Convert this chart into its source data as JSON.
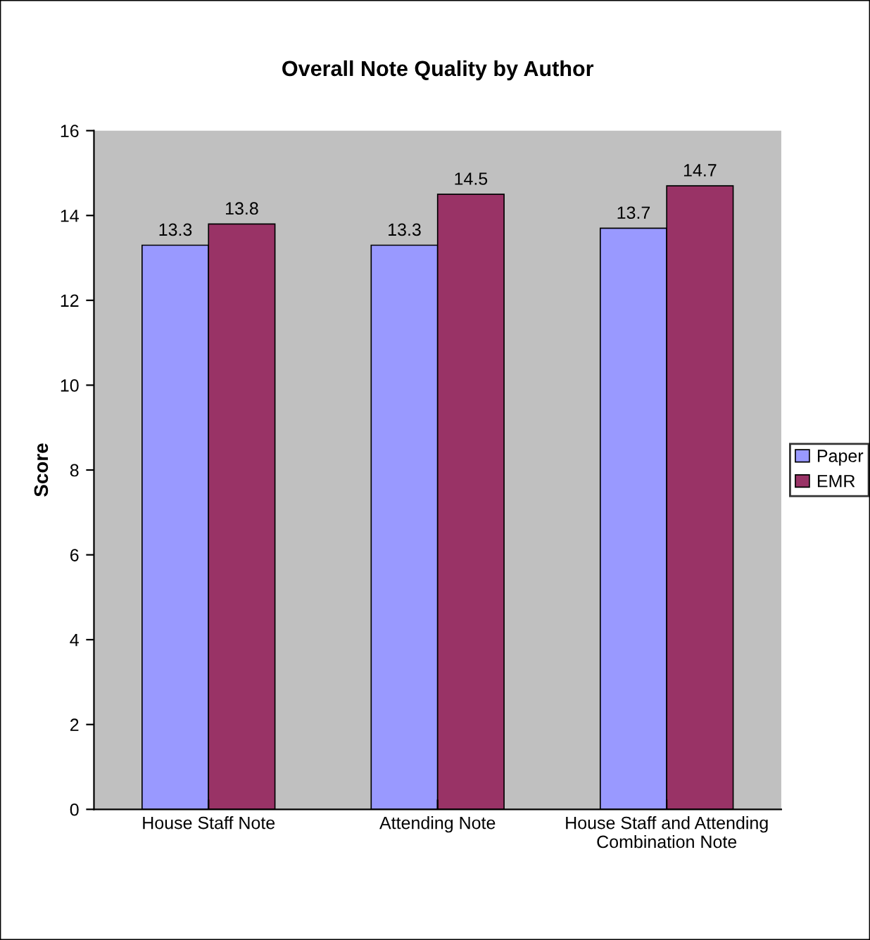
{
  "chart_data": {
    "type": "bar",
    "title": "Overall Note Quality by Author",
    "ylabel": "Score",
    "categories": [
      "House Staff Note",
      "Attending Note",
      "House Staff and Attending Combination Note"
    ],
    "series": [
      {
        "name": "Paper",
        "color": "#9999ff",
        "values": [
          13.3,
          13.3,
          13.7
        ]
      },
      {
        "name": "EMR",
        "color": "#993366",
        "values": [
          13.8,
          14.5,
          14.7
        ]
      }
    ],
    "ylim": [
      0,
      16
    ],
    "yticks": [
      0,
      2,
      4,
      6,
      8,
      10,
      12,
      14,
      16
    ],
    "grid": false,
    "legend": "right",
    "data_labels": true
  }
}
